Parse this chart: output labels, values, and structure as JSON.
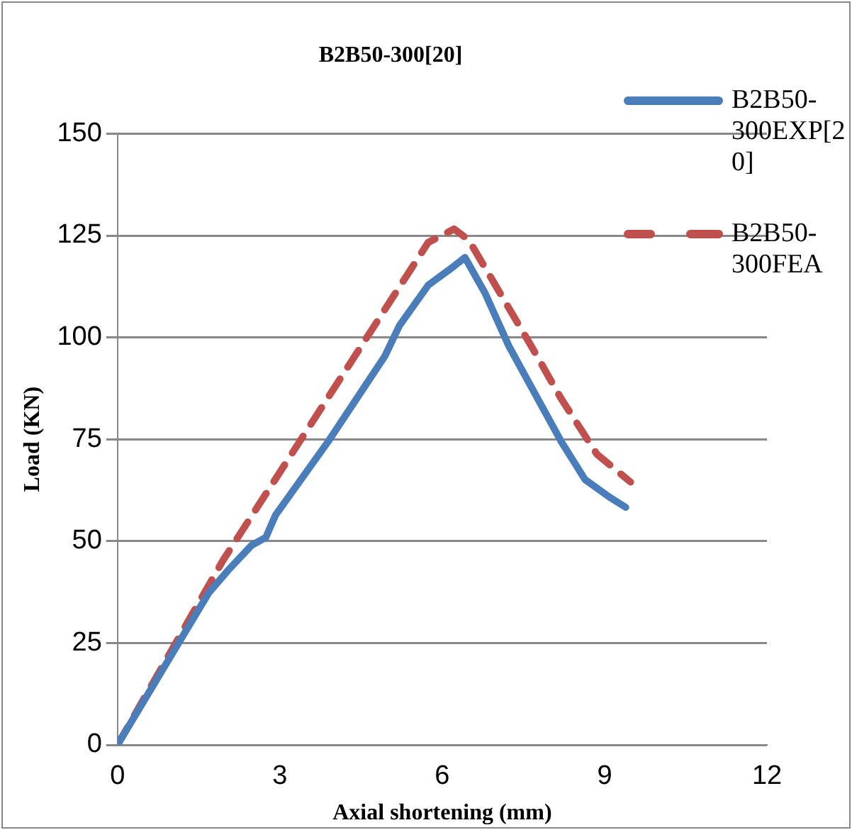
{
  "chart_data": {
    "type": "line",
    "title": "B2B50-300[20]",
    "xlabel": "Axial shortening (mm)",
    "ylabel": "Load (KN)",
    "xlim": [
      0,
      12
    ],
    "xticks": [
      0,
      3,
      6,
      9,
      12
    ],
    "ylim": [
      0,
      150
    ],
    "yticks": [
      0,
      25,
      50,
      75,
      100,
      125,
      150
    ],
    "grid": "y",
    "legend": "top right",
    "marker": "none",
    "series": [
      {
        "name": "B2B50-300EXP[20]",
        "color": "#4a7ebb",
        "line_style": "solid",
        "x": [
          0,
          1.07,
          1.68,
          2.04,
          2.48,
          2.74,
          2.92,
          3.89,
          4.94,
          5.21,
          5.74,
          6.18,
          6.42,
          6.79,
          7.23,
          8.2,
          8.64,
          9.09,
          9.39
        ],
        "values": [
          0,
          23.7,
          37.2,
          42.8,
          49,
          50.9,
          56.4,
          74.4,
          95.4,
          102.9,
          112.8,
          117.1,
          119.6,
          110.9,
          97.9,
          74.4,
          65.1,
          60.8,
          58.3
        ]
      },
      {
        "name": "B2B50-300FEA",
        "color": "#c0504d",
        "line_style": "dashed",
        "x": [
          0,
          1.95,
          5.74,
          6.22,
          6.49,
          7.67,
          8.2,
          8.86,
          9.48
        ],
        "values": [
          0,
          45.3,
          123.3,
          126.6,
          123.9,
          97.3,
          84.9,
          71.3,
          64.5
        ]
      }
    ]
  }
}
